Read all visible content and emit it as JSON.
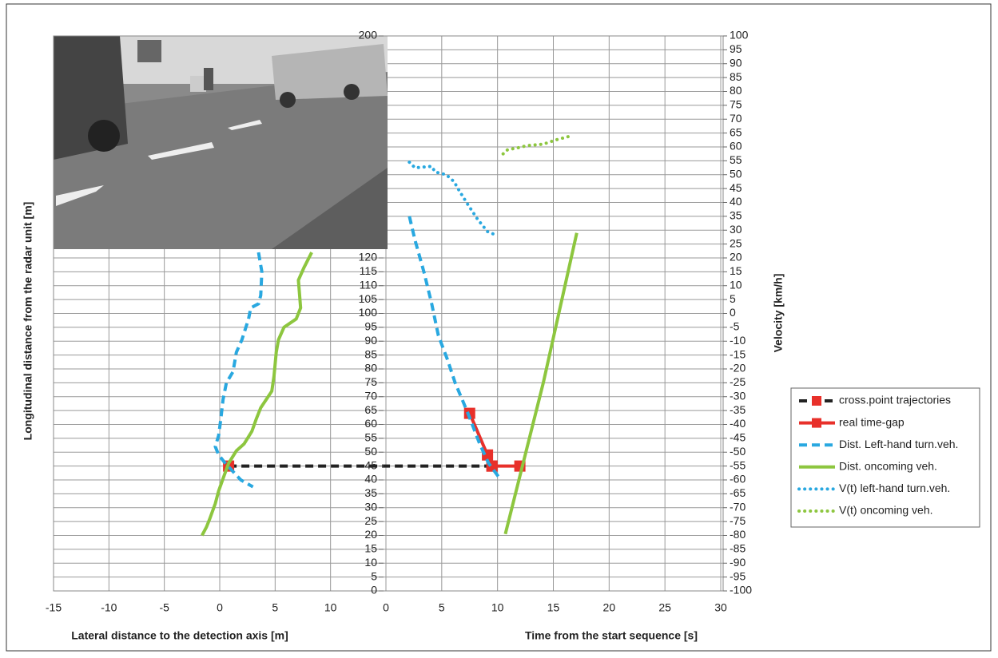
{
  "chart_data": {
    "type": "line",
    "xlabel": "Lateral distance to the detection axis [m]",
    "x2label": "Time from the start sequence [s]",
    "ylabel": "Longitudinal distance from the radar unit [m]",
    "y2label": "Velocity [km/h]",
    "xlim": [
      -15,
      15
    ],
    "xticks": [
      -15,
      -10,
      -5,
      0,
      5,
      10
    ],
    "x2lim": [
      0,
      30
    ],
    "x2ticks": [
      0,
      5,
      10,
      15,
      20,
      25,
      30
    ],
    "ylim": [
      0,
      200
    ],
    "yticks": [
      0,
      5,
      10,
      15,
      20,
      25,
      30,
      35,
      40,
      45,
      50,
      55,
      60,
      65,
      70,
      75,
      80,
      85,
      90,
      95,
      100,
      105,
      110,
      115,
      120,
      200
    ],
    "y2lim": [
      -100,
      100
    ],
    "y2ticks": [
      -100,
      -95,
      -90,
      -85,
      -80,
      -75,
      -70,
      -65,
      -60,
      -55,
      -50,
      -45,
      -40,
      -35,
      -30,
      -25,
      -20,
      -15,
      -10,
      -5,
      0,
      5,
      10,
      15,
      20,
      25,
      30,
      35,
      40,
      45,
      50,
      55,
      60,
      65,
      70,
      75,
      80,
      85,
      90,
      95,
      100
    ],
    "grid": true,
    "legend": "right",
    "series": [
      {
        "name": "cross.point trajectories",
        "color": "#222222",
        "style": "dashed",
        "marker": "square",
        "marker_color": "#e8302a",
        "axis": "y",
        "connect_segments": true,
        "segments": [
          {
            "xaxis": "x",
            "x": [
              0.8
            ],
            "y": [
              45
            ]
          },
          {
            "xaxis": "x2",
            "x": [
              9.5
            ],
            "y": [
              45
            ]
          }
        ]
      },
      {
        "name": "real time-gap",
        "color": "#e8302a",
        "style": "solid",
        "marker": "square",
        "marker_color": "#e8302a",
        "axis": "y",
        "segments": [
          {
            "xaxis": "x2",
            "x": [
              7.5,
              9.1,
              9.5,
              12.0
            ],
            "y": [
              64,
              49,
              45,
              45
            ]
          }
        ]
      },
      {
        "name": "Dist. Left-hand turn.veh.",
        "color": "#29a8e0",
        "style": "dashed",
        "axis": "y",
        "segments": [
          {
            "xaxis": "x",
            "x": [
              3.5,
              3.8,
              3.7,
              3.5,
              2.8,
              2.6,
              2.0,
              1.5,
              1.2,
              0.6,
              0.3,
              0.1,
              -0.1,
              -0.4,
              -0.1,
              0.4,
              1.2,
              1.9,
              3.0
            ],
            "y": [
              122,
              115,
              106.5,
              103.5,
              102,
              98,
              90.5,
              86,
              79,
              75,
              69,
              62,
              56,
              52,
              49,
              46.5,
              43,
              40,
              37.5
            ]
          },
          {
            "xaxis": "x2",
            "x": [
              2.1,
              2.6,
              3.4,
              4.1,
              4.7,
              5.5,
              6.2,
              7.3,
              8.4,
              9.2,
              10.3
            ],
            "y": [
              135,
              126.5,
              115,
              103.5,
              92,
              83.5,
              75,
              64.5,
              53,
              46,
              40
            ]
          }
        ]
      },
      {
        "name": "Dist. oncoming veh.",
        "color": "#8dc63f",
        "style": "solid",
        "axis": "y",
        "segments": [
          {
            "xaxis": "x",
            "x": [
              8.3,
              7.6,
              7.1,
              7.3,
              6.9,
              5.8,
              5.3,
              5.1,
              4.9,
              4.7,
              4.2,
              3.7,
              3.3,
              2.9,
              2.2,
              1.5,
              0.8,
              0.3,
              -0.1,
              -0.4,
              -0.9,
              -1.2,
              -1.6
            ],
            "y": [
              122,
              116.5,
              112,
              102,
              98,
              95,
              90.5,
              86,
              77.5,
              72,
              69,
              66,
              62,
              57.5,
              53,
              50.5,
              46,
              40.5,
              36,
              31.5,
              26,
              23,
              20
            ]
          },
          {
            "xaxis": "x2",
            "x": [
              10.7,
              14.1,
              17.1
            ],
            "y": [
              20.5,
              75,
              129
            ]
          }
        ]
      },
      {
        "name": "V(t) left-hand turn.veh.",
        "color": "#29a8e0",
        "style": "dotted",
        "axis": "y2",
        "segments": [
          {
            "xaxis": "x2",
            "x": [
              2.1,
              2.6,
              4.1,
              4.4,
              5.4,
              6.1,
              6.6,
              7.3,
              8.2,
              9.1,
              10.0
            ],
            "y": [
              54.5,
              52.5,
              53,
              51,
              50,
              47.5,
              44,
              39.5,
              34,
              29.5,
              28
            ]
          }
        ]
      },
      {
        "name": "V(t) oncoming veh.",
        "color": "#8dc63f",
        "style": "dotted",
        "axis": "y2",
        "segments": [
          {
            "xaxis": "x2",
            "x": [
              10.5,
              10.9,
              11.6,
              12.7,
              14.1,
              15.2,
              16.6
            ],
            "y": [
              57.5,
              59,
              59.5,
              60.5,
              61,
              62.5,
              64
            ]
          }
        ]
      }
    ]
  }
}
